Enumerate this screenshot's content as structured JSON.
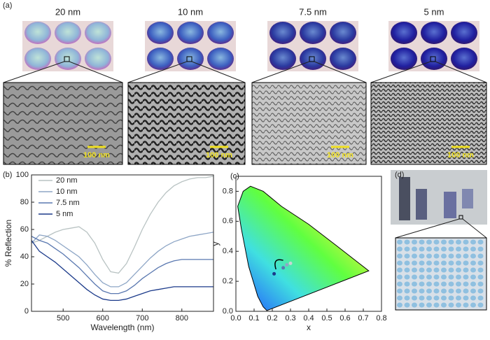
{
  "panel_a": {
    "label": "(a)",
    "thicknesses": [
      "20 nm",
      "10 nm",
      "7.5 nm",
      "5 nm"
    ],
    "scale_bars": [
      "100 nm",
      "100 nm",
      "100 nm",
      "100 nm"
    ]
  },
  "chart_data": [
    {
      "type": "line",
      "label": "(b)",
      "x_label": "Wavelength (nm)",
      "y_label": "% Reflection",
      "x": [
        420,
        440,
        460,
        480,
        500,
        520,
        540,
        560,
        580,
        600,
        620,
        640,
        660,
        680,
        700,
        720,
        740,
        760,
        780,
        800,
        820,
        840,
        860,
        880
      ],
      "xlim": [
        420,
        880
      ],
      "xticks": [
        500,
        600,
        700,
        800
      ],
      "ylim": [
        0,
        100
      ],
      "yticks": [
        0,
        20,
        40,
        60,
        80,
        100
      ],
      "legend": "upper left",
      "series": [
        {
          "name": "20 nm",
          "color": "#b9c3c3",
          "values": [
            50,
            52,
            55,
            58,
            60,
            61,
            62,
            58,
            50,
            38,
            29,
            28,
            35,
            47,
            60,
            71,
            80,
            87,
            92,
            95,
            97,
            98,
            98,
            99
          ]
        },
        {
          "name": "10 nm",
          "color": "#8ea6c6",
          "values": [
            50,
            56,
            55,
            52,
            48,
            44,
            40,
            34,
            27,
            21,
            18,
            18,
            21,
            27,
            33,
            39,
            44,
            48,
            51,
            53,
            55,
            56,
            57,
            58
          ]
        },
        {
          "name": "7.5 nm",
          "color": "#5a78b0",
          "values": [
            55,
            52,
            50,
            46,
            42,
            37,
            32,
            26,
            20,
            15,
            13,
            13,
            15,
            19,
            24,
            28,
            32,
            35,
            37,
            38,
            38,
            38,
            38,
            38
          ]
        },
        {
          "name": "5 nm",
          "color": "#1b3a8a",
          "values": [
            52,
            44,
            40,
            36,
            31,
            26,
            21,
            16,
            12,
            9,
            8,
            8,
            9,
            11,
            13,
            15,
            16,
            17,
            18,
            18,
            18,
            18,
            18,
            18
          ]
        }
      ]
    },
    {
      "type": "scatter",
      "label": "(c)",
      "x_label": "x",
      "y_label": "y",
      "x": [
        0.21,
        0.26,
        0.28,
        0.3
      ],
      "values": [
        0.25,
        0.29,
        0.31,
        0.32
      ],
      "colors": [
        "#1b3a8a",
        "#5a78b0",
        "#8ea6c6",
        "#c9d3d3"
      ],
      "xlim": [
        0,
        0.8
      ],
      "ylim": [
        0,
        0.9
      ],
      "xticks": [
        {
          "value": 0,
          "label": "0.0"
        },
        0.1,
        0.2,
        0.3,
        0.4,
        0.5,
        0.6,
        0.7,
        0.8
      ],
      "yticks": [
        {
          "value": 0,
          "label": "0.0"
        },
        0.2,
        0.4,
        0.6,
        0.8
      ]
    }
  ],
  "panel_d": {
    "label": "(d)"
  }
}
